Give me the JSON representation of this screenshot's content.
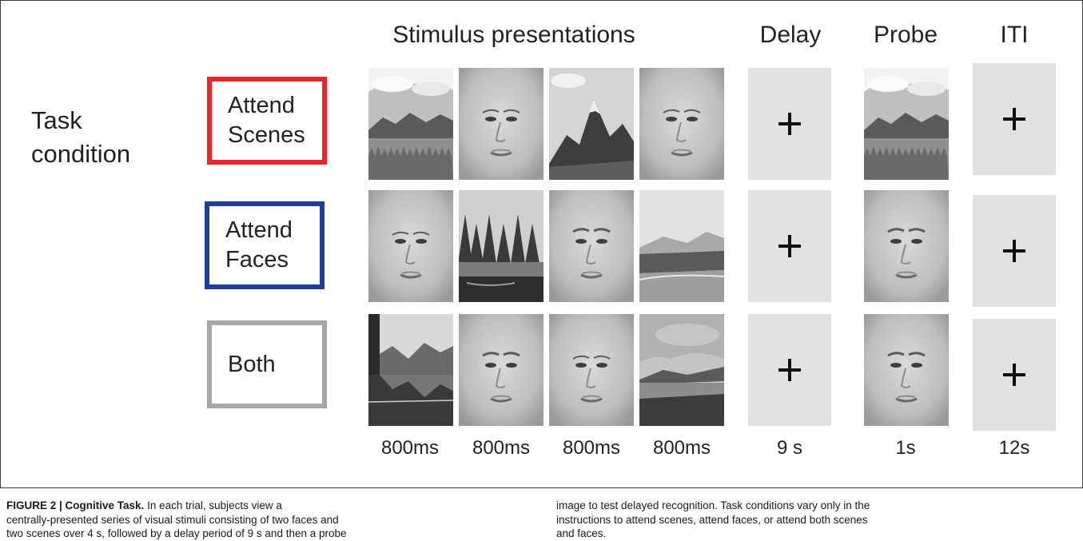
{
  "figure": {
    "headers": {
      "stimulus": "Stimulus presentations",
      "delay": "Delay",
      "probe": "Probe",
      "iti": "ITI"
    },
    "task_condition": {
      "line1": "Task",
      "line2": "condition"
    },
    "conditions": [
      {
        "line1": "Attend",
        "line2": "Scenes",
        "border_color": "#e8262b",
        "stimuli": [
          "scene-meadow",
          "face-female",
          "scene-mountain",
          "face-female"
        ],
        "probe": "scene-meadow"
      },
      {
        "line1": "Attend",
        "line2": "Faces",
        "border_color": "#213f9a",
        "stimuli": [
          "face-female",
          "scene-forest",
          "face-male",
          "scene-river"
        ],
        "probe": "face-male"
      },
      {
        "line1": "Both",
        "line2": "",
        "border_color": "#a7a7a7",
        "stimuli": [
          "scene-lake",
          "face-male",
          "face-female",
          "scene-coast"
        ],
        "probe": "face-male"
      }
    ],
    "fixation_symbol": "+",
    "timings": {
      "stim1": "800ms",
      "stim2": "800ms",
      "stim3": "800ms",
      "stim4": "800ms",
      "delay": "9 s",
      "probe": "1s",
      "iti": "12s"
    }
  },
  "caption": {
    "label": "FIGURE 2 | Cognitive Task.",
    "left_line1": " In each trial, subjects view a",
    "left_line2": "centrally-presented series of visual stimuli consisting of two faces and",
    "left_line3": "two scenes over 4 s, followed by a delay period of 9 s and then a probe",
    "right_line1": "image to test delayed recognition. Task conditions vary only in the",
    "right_line2": "instructions to attend scenes, attend faces, or attend both scenes",
    "right_line3": "and faces."
  }
}
